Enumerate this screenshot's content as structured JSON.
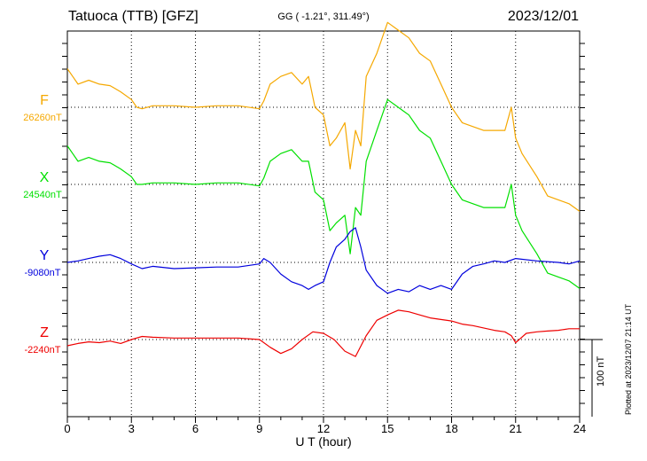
{
  "header": {
    "title": "Tatuoca (TTB)  [GFZ]",
    "coords": "GG ( -1.21°, 311.49°)",
    "date": "2023/12/01"
  },
  "footer": {
    "plotted": "Plotted at 2023/12/07 21:14 UT",
    "scale": "100 nT"
  },
  "chart_data": {
    "type": "line",
    "title": "Tatuoca (TTB)  [GFZ]",
    "xlabel": "U T (hour)",
    "xlim": [
      0,
      24
    ],
    "xticks": [
      0,
      3,
      6,
      9,
      12,
      15,
      18,
      21,
      24
    ],
    "scale_bar_nT": 100,
    "grid": true,
    "units": "nT",
    "series": [
      {
        "name": "F",
        "baseline_label": "26260nT",
        "baseline": 26260,
        "color": "#f5a800",
        "x": [
          0,
          0.25,
          0.5,
          1,
          1.5,
          2,
          2.5,
          3,
          3.25,
          3.5,
          4,
          5,
          6,
          7,
          8,
          9,
          9.2,
          9.5,
          10,
          10.5,
          11,
          11.3,
          11.6,
          12,
          12.3,
          12.6,
          13,
          13.25,
          13.5,
          13.75,
          14,
          14.5,
          15,
          15.5,
          16,
          16.5,
          17,
          17.5,
          18,
          18.5,
          19,
          19.5,
          20,
          20.5,
          20.8,
          21,
          21.3,
          22,
          22.5,
          23,
          23.5,
          24
        ],
        "y": [
          26310,
          26300,
          26290,
          26295,
          26290,
          26288,
          26280,
          26270,
          26260,
          26258,
          26262,
          26262,
          26260,
          26262,
          26262,
          26258,
          26268,
          26290,
          26300,
          26305,
          26290,
          26300,
          26260,
          26250,
          26210,
          26220,
          26240,
          26180,
          26230,
          26210,
          26300,
          26330,
          26370,
          26360,
          26350,
          26330,
          26320,
          26290,
          26260,
          26240,
          26235,
          26230,
          26230,
          26230,
          26260,
          26220,
          26200,
          26170,
          26145,
          26140,
          26135,
          26125
        ]
      },
      {
        "name": "X",
        "baseline_label": "24540nT",
        "baseline": 24540,
        "color": "#00e000",
        "x": [
          0,
          0.25,
          0.5,
          1,
          1.5,
          2,
          2.5,
          3,
          3.25,
          3.5,
          4,
          5,
          6,
          7,
          8,
          9,
          9.2,
          9.5,
          10,
          10.5,
          11,
          11.3,
          11.6,
          12,
          12.3,
          12.6,
          13,
          13.25,
          13.5,
          13.75,
          14,
          14.5,
          15,
          15.5,
          16,
          16.5,
          17,
          17.5,
          18,
          18.5,
          19,
          19.5,
          20,
          20.5,
          20.8,
          21,
          21.3,
          22,
          22.5,
          23,
          23.5,
          24
        ],
        "y": [
          24590,
          24580,
          24570,
          24575,
          24570,
          24568,
          24560,
          24550,
          24540,
          24540,
          24542,
          24542,
          24540,
          24542,
          24542,
          24538,
          24548,
          24570,
          24580,
          24585,
          24570,
          24570,
          24530,
          24520,
          24480,
          24490,
          24500,
          24450,
          24510,
          24500,
          24570,
          24610,
          24650,
          24640,
          24630,
          24610,
          24600,
          24570,
          24540,
          24520,
          24515,
          24510,
          24510,
          24510,
          24540,
          24500,
          24480,
          24450,
          24425,
          24420,
          24415,
          24405
        ]
      },
      {
        "name": "Y",
        "baseline_label": "-9080nT",
        "baseline": -9080,
        "color": "#0000dd",
        "x": [
          0,
          0.5,
          1,
          1.5,
          2,
          2.5,
          3,
          3.5,
          4,
          5,
          6,
          7,
          8,
          9,
          9.2,
          9.5,
          10,
          10.5,
          11,
          11.3,
          11.6,
          12,
          12.3,
          12.6,
          13,
          13.25,
          13.5,
          13.75,
          14,
          14.5,
          15,
          15.5,
          16,
          16.5,
          17,
          17.5,
          18,
          18.5,
          19,
          19.5,
          20,
          20.5,
          21,
          22,
          23,
          23.5,
          24
        ],
        "y": [
          -9080,
          -9078,
          -9075,
          -9072,
          -9070,
          -9075,
          -9082,
          -9088,
          -9085,
          -9088,
          -9087,
          -9086,
          -9086,
          -9082,
          -9075,
          -9080,
          -9095,
          -9105,
          -9110,
          -9115,
          -9110,
          -9105,
          -9080,
          -9060,
          -9050,
          -9040,
          -9035,
          -9060,
          -9090,
          -9110,
          -9120,
          -9115,
          -9118,
          -9110,
          -9115,
          -9110,
          -9115,
          -9095,
          -9085,
          -9082,
          -9078,
          -9080,
          -9075,
          -9078,
          -9080,
          -9082,
          -9078
        ]
      },
      {
        "name": "Z",
        "baseline_label": "-2240nT",
        "baseline": -2240,
        "color": "#ee0000",
        "x": [
          0,
          0.5,
          1,
          1.5,
          2,
          2.5,
          3,
          3.5,
          4,
          5,
          6,
          7,
          8,
          9,
          9.5,
          10,
          10.5,
          11,
          11.5,
          12,
          12.5,
          13,
          13.5,
          14,
          14.5,
          15,
          15.5,
          16,
          16.5,
          17,
          17.5,
          18,
          18.5,
          19,
          19.5,
          20,
          20.5,
          20.8,
          21,
          21.5,
          22,
          22.5,
          23,
          23.5,
          24
        ],
        "y": [
          -2248,
          -2245,
          -2243,
          -2244,
          -2242,
          -2245,
          -2240,
          -2236,
          -2237,
          -2238,
          -2238,
          -2238,
          -2238,
          -2240,
          -2250,
          -2258,
          -2252,
          -2240,
          -2230,
          -2232,
          -2240,
          -2255,
          -2262,
          -2235,
          -2215,
          -2208,
          -2202,
          -2204,
          -2208,
          -2212,
          -2214,
          -2216,
          -2220,
          -2222,
          -2225,
          -2228,
          -2230,
          -2235,
          -2244,
          -2232,
          -2230,
          -2229,
          -2228,
          -2226,
          -2226
        ]
      }
    ]
  }
}
